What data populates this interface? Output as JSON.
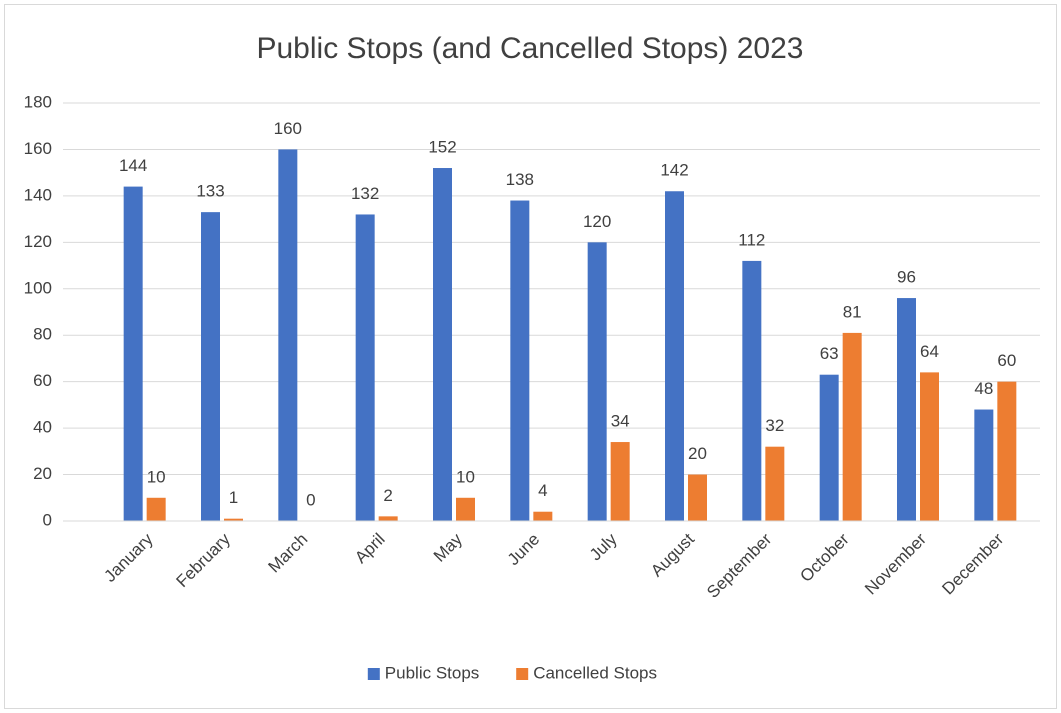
{
  "chart_data": {
    "type": "bar",
    "title": "Public Stops (and Cancelled Stops) 2023",
    "categories": [
      "January",
      "February",
      "March",
      "April",
      "May",
      "June",
      "July",
      "August",
      "September",
      "October",
      "November",
      "December"
    ],
    "series": [
      {
        "name": "Public Stops",
        "color": "#4472c4",
        "values": [
          144,
          133,
          160,
          132,
          152,
          138,
          120,
          142,
          112,
          63,
          96,
          48
        ]
      },
      {
        "name": "Cancelled Stops",
        "color": "#ed7d31",
        "values": [
          10,
          1,
          0,
          2,
          10,
          4,
          34,
          20,
          32,
          81,
          64,
          60
        ]
      }
    ],
    "ylim": [
      0,
      180
    ],
    "yticks": [
      0,
      20,
      40,
      60,
      80,
      100,
      120,
      140,
      160,
      180
    ],
    "grid": true,
    "legend": "bottom"
  }
}
